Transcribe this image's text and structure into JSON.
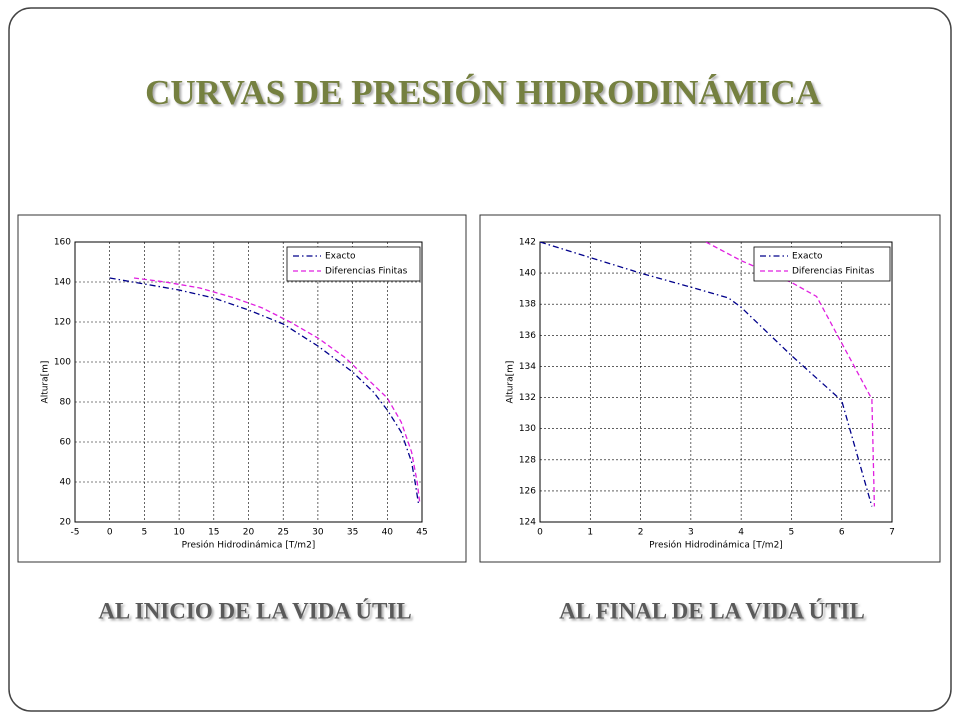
{
  "title": "CURVAS DE PRESIÓN HIDRODINÁMICA",
  "chart_data": [
    {
      "type": "line",
      "caption": "AL INICIO DE LA VIDA ÚTIL",
      "x_label": "Presión Hidrodinámica [T/m2]",
      "y_label": "Altura[m]",
      "xlim": [
        -5,
        45
      ],
      "xticks": [
        -5,
        0,
        5,
        10,
        15,
        20,
        25,
        30,
        35,
        40,
        45
      ],
      "ylim": [
        20,
        160
      ],
      "yticks": [
        20,
        40,
        60,
        80,
        100,
        120,
        140,
        160
      ],
      "grid": true,
      "legend": "northeast",
      "series": [
        {
          "name": "Exacto",
          "color": "#00008b",
          "dash": "dashdot",
          "x": [
            0,
            5,
            10,
            15,
            20,
            25,
            30,
            35,
            38,
            40,
            42,
            43.5,
            44,
            44.5
          ],
          "values": [
            142,
            139,
            136,
            132,
            126,
            119,
            108,
            95,
            85,
            76,
            65,
            50,
            40,
            29
          ]
        },
        {
          "name": "Diferencias Finitas",
          "color": "#e020e0",
          "dash": "dashed",
          "x": [
            3.5,
            8,
            13,
            18,
            22,
            26,
            30,
            34,
            37,
            40,
            42,
            43.5,
            44.3,
            44.7
          ],
          "values": [
            142,
            140,
            137,
            132,
            127,
            120,
            112,
            102,
            92,
            82,
            70,
            55,
            40,
            29
          ]
        }
      ]
    },
    {
      "type": "line",
      "caption": "AL FINAL DE LA VIDA ÚTIL",
      "x_label": "Presión Hidrodinámica [T/m2]",
      "y_label": "Altura[m]",
      "xlim": [
        0,
        7
      ],
      "xticks": [
        0,
        1,
        2,
        3,
        4,
        5,
        6,
        7
      ],
      "ylim": [
        124,
        142
      ],
      "yticks": [
        124,
        126,
        128,
        130,
        132,
        134,
        136,
        138,
        140,
        142
      ],
      "grid": true,
      "legend": "northeast",
      "series": [
        {
          "name": "Exacto",
          "color": "#00008b",
          "dash": "dashdot",
          "x": [
            0,
            1,
            2,
            3,
            3.75,
            4,
            5,
            6,
            6.6
          ],
          "values": [
            142,
            141,
            140,
            139.1,
            138.4,
            137.8,
            134.7,
            131.8,
            125
          ]
        },
        {
          "name": "Diferencias Finitas",
          "color": "#e020e0",
          "dash": "dashed",
          "x": [
            3.3,
            4,
            5,
            5.5,
            6,
            6.6,
            6.65
          ],
          "values": [
            142,
            140.8,
            139.4,
            138.5,
            135.5,
            131.9,
            125
          ]
        }
      ]
    }
  ]
}
